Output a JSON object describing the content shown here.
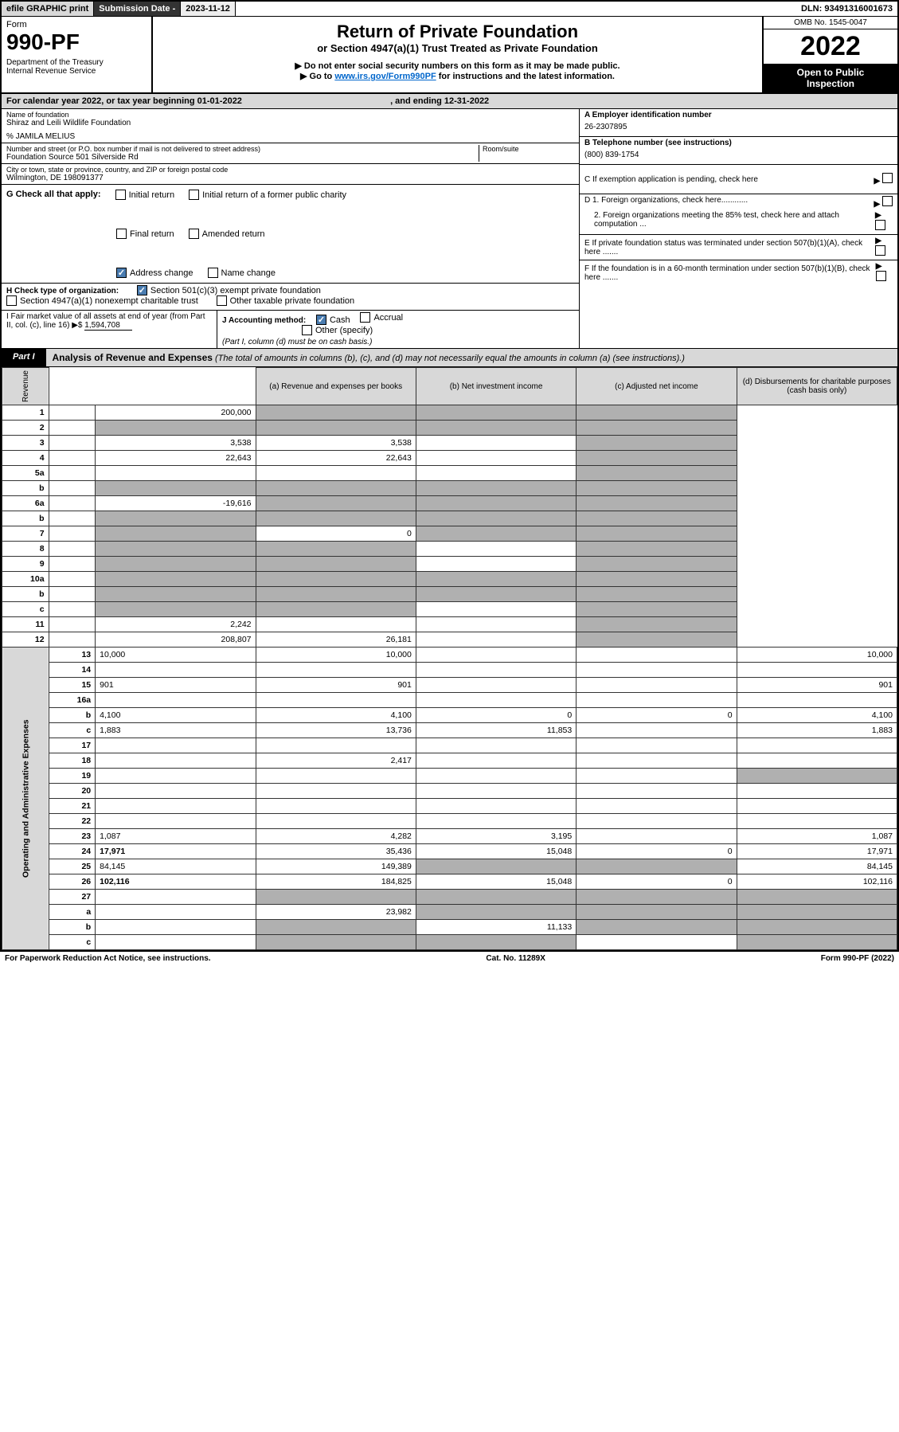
{
  "topbar": {
    "efile": "efile GRAPHIC print",
    "subdate_lbl": "Submission Date - ",
    "subdate": "2023-11-12",
    "dln_lbl": "DLN: ",
    "dln": "93491316001673"
  },
  "header": {
    "form": "Form",
    "formno": "990-PF",
    "dept": "Department of the Treasury",
    "irs": "Internal Revenue Service",
    "title": "Return of Private Foundation",
    "subtitle": "or Section 4947(a)(1) Trust Treated as Private Foundation",
    "warn": "▶ Do not enter social security numbers on this form as it may be made public.",
    "goto_pre": "▶ Go to ",
    "goto_link": "www.irs.gov/Form990PF",
    "goto_post": " for instructions and the latest information.",
    "omb": "OMB No. 1545-0047",
    "year": "2022",
    "inspect1": "Open to Public",
    "inspect2": "Inspection"
  },
  "calyr": {
    "pre": "For calendar year 2022, or tax year beginning ",
    "begin": "01-01-2022",
    "mid": ", and ending ",
    "end": "12-31-2022"
  },
  "info": {
    "name_lbl": "Name of foundation",
    "name": "Shiraz and Leili Wildlife Foundation",
    "care": "% JAMILA MELIUS",
    "addr_lbl": "Number and street (or P.O. box number if mail is not delivered to street address)",
    "addr": "Foundation Source 501 Silverside Rd",
    "room_lbl": "Room/suite",
    "city_lbl": "City or town, state or province, country, and ZIP or foreign postal code",
    "city": "Wilmington, DE  198091377",
    "a_lbl": "A Employer identification number",
    "a_val": "26-2307895",
    "b_lbl": "B Telephone number (see instructions)",
    "b_val": "(800) 839-1754",
    "c_lbl": "C If exemption application is pending, check here",
    "d1": "D 1. Foreign organizations, check here............",
    "d2": "2. Foreign organizations meeting the 85% test, check here and attach computation ...",
    "e_lbl": "E  If private foundation status was terminated under section 507(b)(1)(A), check here .......",
    "f_lbl": "F  If the foundation is in a 60-month termination under section 507(b)(1)(B), check here .......",
    "g_lbl": "G Check all that apply:",
    "g1": "Initial return",
    "g2": "Final return",
    "g3": "Address change",
    "g4": "Initial return of a former public charity",
    "g5": "Amended return",
    "g6": "Name change",
    "h_lbl": "H Check type of organization:",
    "h1": "Section 501(c)(3) exempt private foundation",
    "h2": "Section 4947(a)(1) nonexempt charitable trust",
    "h3": "Other taxable private foundation",
    "i_lbl": "I Fair market value of all assets at end of year (from Part II, col. (c), line 16) ▶$ ",
    "i_val": "1,594,708",
    "j_lbl": "J Accounting method:",
    "j1": "Cash",
    "j2": "Accrual",
    "j3": "Other (specify)",
    "j_note": "(Part I, column (d) must be on cash basis.)"
  },
  "part1": {
    "tab": "Part I",
    "title": "Analysis of Revenue and Expenses",
    "title_note": "(The total of amounts in columns (b), (c), and (d) may not necessarily equal the amounts in column (a) (see instructions).)",
    "cols": {
      "a": "(a)   Revenue and expenses per books",
      "b": "(b)   Net investment income",
      "c": "(c)   Adjusted net income",
      "d": "(d)   Disbursements for charitable purposes (cash basis only)"
    },
    "side_rev": "Revenue",
    "side_exp": "Operating and Administrative Expenses",
    "rows": [
      {
        "n": "1",
        "d": "",
        "a": "200,000",
        "b": "",
        "c": "",
        "shade": [
          "b",
          "c",
          "d"
        ]
      },
      {
        "n": "2",
        "d": "",
        "a": "",
        "b": "",
        "c": "",
        "shade": [
          "a",
          "b",
          "c",
          "d"
        ]
      },
      {
        "n": "3",
        "d": "",
        "a": "3,538",
        "b": "3,538",
        "c": "",
        "shade": [
          "d"
        ]
      },
      {
        "n": "4",
        "d": "",
        "a": "22,643",
        "b": "22,643",
        "c": "",
        "shade": [
          "d"
        ]
      },
      {
        "n": "5a",
        "d": "",
        "a": "",
        "b": "",
        "c": "",
        "shade": [
          "d"
        ]
      },
      {
        "n": "b",
        "d": "",
        "a": "",
        "b": "",
        "c": "",
        "shade": [
          "a",
          "b",
          "c",
          "d"
        ]
      },
      {
        "n": "6a",
        "d": "",
        "a": "-19,616",
        "b": "",
        "c": "",
        "shade": [
          "b",
          "c",
          "d"
        ]
      },
      {
        "n": "b",
        "d": "",
        "a": "",
        "b": "",
        "c": "",
        "shade": [
          "a",
          "b",
          "c",
          "d"
        ]
      },
      {
        "n": "7",
        "d": "",
        "a": "",
        "b": "0",
        "c": "",
        "shade": [
          "a",
          "c",
          "d"
        ]
      },
      {
        "n": "8",
        "d": "",
        "a": "",
        "b": "",
        "c": "",
        "shade": [
          "a",
          "b",
          "d"
        ]
      },
      {
        "n": "9",
        "d": "",
        "a": "",
        "b": "",
        "c": "",
        "shade": [
          "a",
          "b",
          "d"
        ]
      },
      {
        "n": "10a",
        "d": "",
        "a": "",
        "b": "",
        "c": "",
        "shade": [
          "a",
          "b",
          "c",
          "d"
        ]
      },
      {
        "n": "b",
        "d": "",
        "a": "",
        "b": "",
        "c": "",
        "shade": [
          "a",
          "b",
          "c",
          "d"
        ]
      },
      {
        "n": "c",
        "d": "",
        "a": "",
        "b": "",
        "c": "",
        "shade": [
          "a",
          "b",
          "d"
        ]
      },
      {
        "n": "11",
        "d": "",
        "a": "2,242",
        "b": "",
        "c": "",
        "shade": [
          "d"
        ]
      },
      {
        "n": "12",
        "d": "",
        "a": "208,807",
        "b": "26,181",
        "c": "",
        "shade": [
          "d"
        ],
        "bold": true
      },
      {
        "n": "13",
        "d": "10,000",
        "a": "10,000",
        "b": "",
        "c": ""
      },
      {
        "n": "14",
        "d": "",
        "a": "",
        "b": "",
        "c": ""
      },
      {
        "n": "15",
        "d": "901",
        "a": "901",
        "b": "",
        "c": ""
      },
      {
        "n": "16a",
        "d": "",
        "a": "",
        "b": "",
        "c": ""
      },
      {
        "n": "b",
        "d": "4,100",
        "a": "4,100",
        "b": "0",
        "c": "0"
      },
      {
        "n": "c",
        "d": "1,883",
        "a": "13,736",
        "b": "11,853",
        "c": ""
      },
      {
        "n": "17",
        "d": "",
        "a": "",
        "b": "",
        "c": ""
      },
      {
        "n": "18",
        "d": "",
        "a": "2,417",
        "b": "",
        "c": ""
      },
      {
        "n": "19",
        "d": "",
        "a": "",
        "b": "",
        "c": "",
        "shade": [
          "d"
        ]
      },
      {
        "n": "20",
        "d": "",
        "a": "",
        "b": "",
        "c": ""
      },
      {
        "n": "21",
        "d": "",
        "a": "",
        "b": "",
        "c": ""
      },
      {
        "n": "22",
        "d": "",
        "a": "",
        "b": "",
        "c": ""
      },
      {
        "n": "23",
        "d": "1,087",
        "a": "4,282",
        "b": "3,195",
        "c": ""
      },
      {
        "n": "24",
        "d": "17,971",
        "a": "35,436",
        "b": "15,048",
        "c": "0",
        "bold": true
      },
      {
        "n": "25",
        "d": "84,145",
        "a": "149,389",
        "b": "",
        "c": "",
        "shade": [
          "b",
          "c"
        ]
      },
      {
        "n": "26",
        "d": "102,116",
        "a": "184,825",
        "b": "15,048",
        "c": "0",
        "bold": true
      },
      {
        "n": "27",
        "d": "",
        "a": "",
        "b": "",
        "c": "",
        "shade": [
          "a",
          "b",
          "c",
          "d"
        ]
      },
      {
        "n": "a",
        "d": "",
        "a": "23,982",
        "b": "",
        "c": "",
        "shade": [
          "b",
          "c",
          "d"
        ],
        "bold": true
      },
      {
        "n": "b",
        "d": "",
        "a": "",
        "b": "11,133",
        "c": "",
        "shade": [
          "a",
          "c",
          "d"
        ],
        "bold": true
      },
      {
        "n": "c",
        "d": "",
        "a": "",
        "b": "",
        "c": "",
        "shade": [
          "a",
          "b",
          "d"
        ],
        "bold": true
      }
    ]
  },
  "footer": {
    "left": "For Paperwork Reduction Act Notice, see instructions.",
    "mid": "Cat. No. 11289X",
    "right": "Form 990-PF (2022)"
  }
}
